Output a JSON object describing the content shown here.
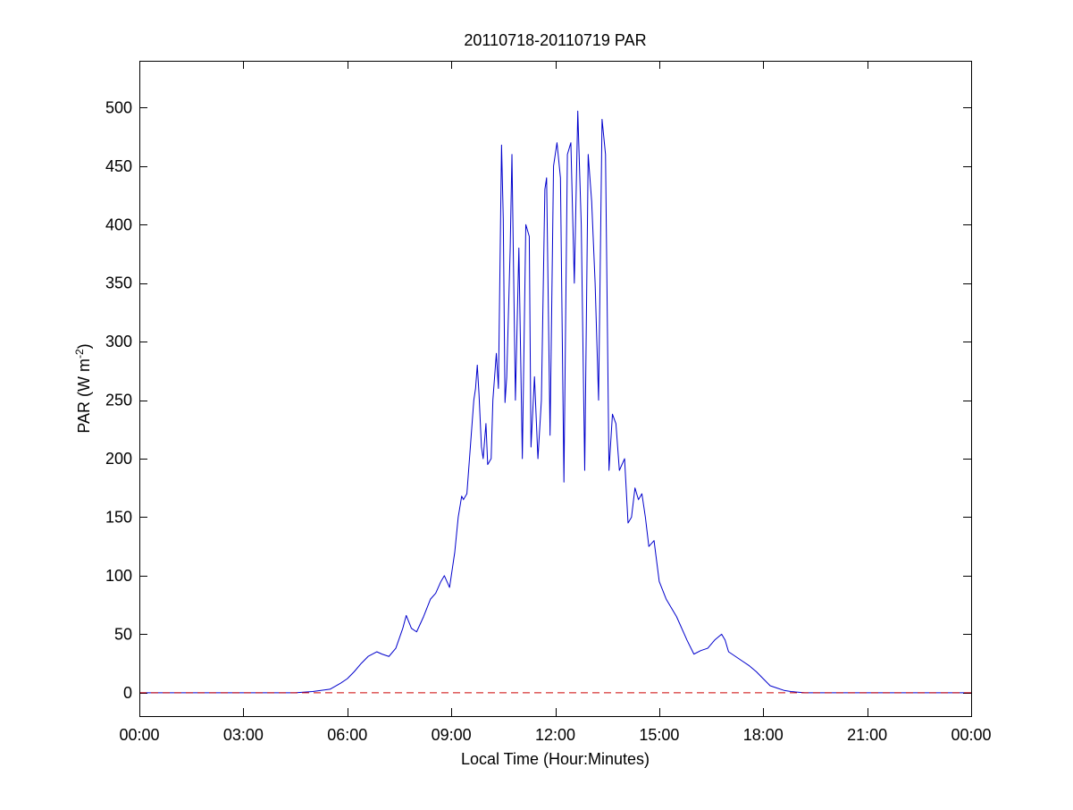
{
  "chart_data": {
    "type": "line",
    "title": "20110718-20110719 PAR",
    "xlabel": "Local Time (Hour:Minutes)",
    "ylabel": {
      "main": "PAR (W m",
      "sup": "-2",
      "tail": ")"
    },
    "xlim": [
      0,
      24
    ],
    "ylim": [
      -20,
      540
    ],
    "x_ticks": [
      {
        "value": 0,
        "label": "00:00"
      },
      {
        "value": 3,
        "label": "03:00"
      },
      {
        "value": 6,
        "label": "06:00"
      },
      {
        "value": 9,
        "label": "09:00"
      },
      {
        "value": 12,
        "label": "12:00"
      },
      {
        "value": 15,
        "label": "15:00"
      },
      {
        "value": 18,
        "label": "18:00"
      },
      {
        "value": 21,
        "label": "21:00"
      },
      {
        "value": 24,
        "label": "00:00"
      }
    ],
    "y_ticks": [
      {
        "value": 0,
        "label": "0"
      },
      {
        "value": 50,
        "label": "50"
      },
      {
        "value": 100,
        "label": "100"
      },
      {
        "value": 150,
        "label": "150"
      },
      {
        "value": 200,
        "label": "200"
      },
      {
        "value": 250,
        "label": "250"
      },
      {
        "value": 300,
        "label": "300"
      },
      {
        "value": 350,
        "label": "350"
      },
      {
        "value": 400,
        "label": "400"
      },
      {
        "value": 450,
        "label": "450"
      },
      {
        "value": 500,
        "label": "500"
      }
    ],
    "grid": false,
    "series": [
      {
        "color": "#0000cc",
        "style": "solid",
        "x": [
          0,
          4.5,
          5.0,
          5.5,
          5.8,
          6.0,
          6.2,
          6.4,
          6.6,
          6.85,
          7.0,
          7.2,
          7.4,
          7.6,
          7.7,
          7.85,
          8.0,
          8.2,
          8.4,
          8.55,
          8.7,
          8.8,
          8.95,
          9.0,
          9.1,
          9.2,
          9.3,
          9.35,
          9.45,
          9.5,
          9.55,
          9.6,
          9.65,
          9.7,
          9.75,
          9.8,
          9.87,
          9.92,
          10.0,
          10.05,
          10.15,
          10.2,
          10.3,
          10.36,
          10.45,
          10.5,
          10.55,
          10.6,
          10.7,
          10.75,
          10.85,
          10.95,
          11.05,
          11.15,
          11.25,
          11.3,
          11.4,
          11.5,
          11.6,
          11.7,
          11.75,
          11.85,
          11.95,
          12.05,
          12.15,
          12.25,
          12.35,
          12.45,
          12.55,
          12.65,
          12.75,
          12.85,
          12.95,
          13.05,
          13.15,
          13.25,
          13.35,
          13.45,
          13.55,
          13.65,
          13.75,
          13.85,
          14.0,
          14.1,
          14.2,
          14.3,
          14.4,
          14.5,
          14.6,
          14.7,
          14.85,
          15.0,
          15.2,
          15.5,
          15.8,
          16.0,
          16.2,
          16.4,
          16.6,
          16.8,
          16.9,
          17.0,
          17.2,
          17.4,
          17.6,
          17.8,
          18.0,
          18.2,
          18.4,
          18.6,
          18.8,
          19.2,
          19.6,
          24
        ],
        "y": [
          0,
          0,
          1,
          3,
          8,
          12,
          18,
          25,
          31,
          35,
          33,
          31,
          38,
          55,
          66,
          55,
          52,
          65,
          80,
          85,
          95,
          100,
          90,
          100,
          120,
          150,
          168,
          165,
          170,
          190,
          210,
          230,
          250,
          260,
          280,
          255,
          210,
          200,
          230,
          195,
          200,
          250,
          290,
          260,
          468,
          405,
          248,
          270,
          380,
          460,
          250,
          380,
          200,
          400,
          390,
          210,
          270,
          200,
          250,
          430,
          440,
          220,
          450,
          470,
          440,
          180,
          460,
          470,
          350,
          497,
          400,
          190,
          460,
          420,
          350,
          250,
          490,
          460,
          190,
          238,
          230,
          190,
          200,
          145,
          150,
          175,
          165,
          170,
          150,
          125,
          130,
          95,
          80,
          65,
          45,
          33,
          36,
          38,
          45,
          50,
          45,
          35,
          31,
          27,
          23,
          18,
          12,
          6,
          4,
          2,
          1,
          0,
          0,
          0
        ]
      },
      {
        "color": "#cc0000",
        "style": "dashed",
        "x": [
          0,
          24
        ],
        "y": [
          0,
          0
        ]
      }
    ]
  }
}
